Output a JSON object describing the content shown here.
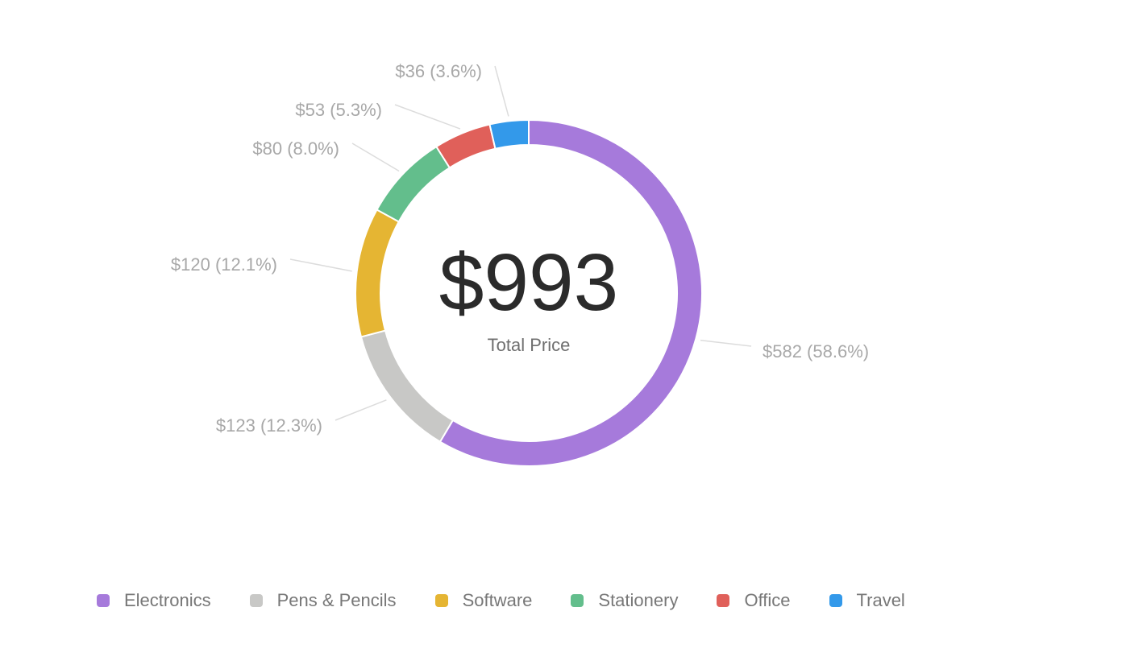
{
  "chart_data": {
    "type": "pie",
    "variant": "donut",
    "center": {
      "value": "$993",
      "caption": "Total Price"
    },
    "slices": [
      {
        "name": "Electronics",
        "value": 582,
        "label": "$582 (58.6%)",
        "color": "#a67adb"
      },
      {
        "name": "Pens & Pencils",
        "value": 123,
        "label": "$123 (12.3%)",
        "color": "#c8c8c6"
      },
      {
        "name": "Software",
        "value": 120,
        "label": "$120 (12.1%)",
        "color": "#e5b533"
      },
      {
        "name": "Stationery",
        "value": 80,
        "label": "$80 (8.0%)",
        "color": "#63be8c"
      },
      {
        "name": "Office",
        "value": 53,
        "label": "$53 (5.3%)",
        "color": "#e0605a"
      },
      {
        "name": "Travel",
        "value": 36,
        "label": "$36 (3.6%)",
        "color": "#3399ea"
      }
    ],
    "direction": "clockwise",
    "start": "top",
    "legend_position": "bottom"
  }
}
